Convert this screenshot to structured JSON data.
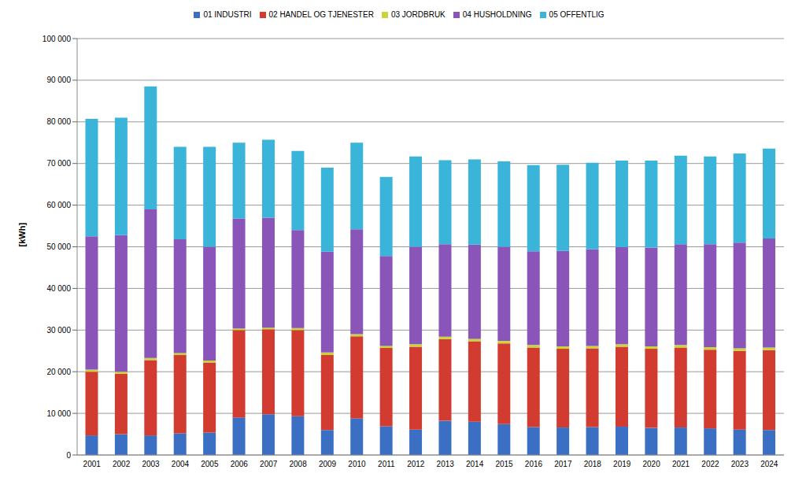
{
  "chart_data": {
    "type": "bar",
    "stacked": true,
    "grid": true,
    "legend": "top",
    "ylabel": "[kWh]",
    "categories": [
      "2001",
      "2002",
      "2003",
      "2004",
      "2005",
      "2006",
      "2007",
      "2008",
      "2009",
      "2010",
      "2011",
      "2012",
      "2013",
      "2014",
      "2015",
      "2016",
      "2017",
      "2018",
      "2019",
      "2020",
      "2021",
      "2022",
      "2023",
      "2024"
    ],
    "ylim": [
      0,
      100000
    ],
    "yticks": [
      0,
      {
        "value": 10000,
        "label": "10 000"
      },
      {
        "value": 20000,
        "label": "20 000"
      },
      {
        "value": 30000,
        "label": "30 000"
      },
      {
        "value": 40000,
        "label": "40 000"
      },
      {
        "value": 50000,
        "label": "50 000"
      },
      {
        "value": 60000,
        "label": "60 000"
      },
      {
        "value": 70000,
        "label": "70 000"
      },
      {
        "value": 80000,
        "label": "80 000"
      },
      {
        "value": 90000,
        "label": "90 000"
      },
      {
        "value": 100000,
        "label": "100 000"
      }
    ],
    "series": [
      {
        "name": "01 INDUSTRI",
        "color": "#3a6fc4",
        "values": [
          4700,
          5000,
          4700,
          5200,
          5400,
          9000,
          9800,
          9300,
          6000,
          8800,
          6900,
          6100,
          8200,
          8000,
          7400,
          6700,
          6600,
          6700,
          6800,
          6500,
          6600,
          6400,
          6100,
          6000
        ]
      },
      {
        "name": "02 HANDEL OG TJENESTER",
        "color": "#d13b30",
        "values": [
          15300,
          14500,
          18100,
          18800,
          16800,
          21000,
          20400,
          20700,
          18000,
          19700,
          18800,
          19900,
          19600,
          19300,
          19400,
          19100,
          18900,
          18900,
          19200,
          19000,
          19200,
          18900,
          18900,
          19200
        ]
      },
      {
        "name": "03 JORDBRUK",
        "color": "#c8d43a",
        "values": [
          500,
          500,
          500,
          500,
          500,
          400,
          400,
          500,
          600,
          500,
          500,
          600,
          600,
          600,
          600,
          600,
          600,
          600,
          600,
          600,
          600,
          600,
          600,
          600
        ]
      },
      {
        "name": "04 HUSHOLDNING",
        "color": "#8a55b8",
        "values": [
          32000,
          32800,
          35700,
          27300,
          27300,
          26400,
          26400,
          23500,
          24200,
          25200,
          21600,
          23400,
          22200,
          22600,
          22600,
          22500,
          22900,
          23200,
          23300,
          23700,
          24200,
          24700,
          25400,
          26200
        ]
      },
      {
        "name": "05 OFFENTLIG",
        "color": "#3ab4d8",
        "values": [
          28200,
          28200,
          29500,
          22200,
          24000,
          18200,
          18700,
          19000,
          20200,
          20800,
          19000,
          21700,
          20200,
          20500,
          20500,
          20700,
          20700,
          20800,
          20800,
          20900,
          21300,
          21100,
          21400,
          21600
        ]
      }
    ]
  }
}
